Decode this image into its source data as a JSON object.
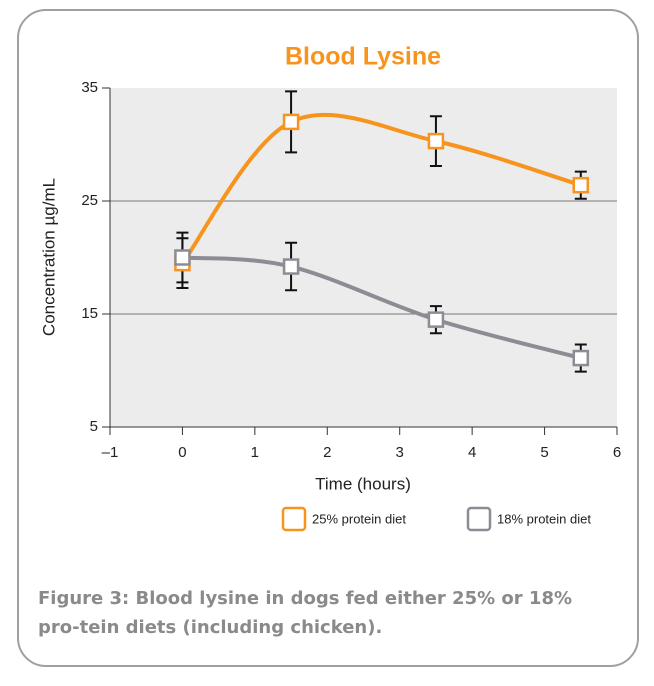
{
  "chart_data": {
    "type": "line",
    "title": "Blood Lysine",
    "xlabel": "Time (hours)",
    "ylabel": "Concentration µg/mL",
    "xlim": [
      -1,
      6
    ],
    "xticks": [
      {
        "value": -1,
        "label": "–1"
      },
      0,
      1,
      2,
      3,
      4,
      5,
      6
    ],
    "ylim": [
      5,
      35
    ],
    "yticks": [
      5,
      15,
      25,
      35
    ],
    "grid": true,
    "legend": "bottom",
    "series": [
      {
        "name": "25% protein diet",
        "color": "#f7941d",
        "x": [
          0,
          1.5,
          3.5,
          5.5
        ],
        "values": [
          19.5,
          32,
          30.3,
          26.4
        ],
        "errors": [
          2.2,
          2.7,
          2.2,
          1.2
        ]
      },
      {
        "name": "18% protein diet",
        "color": "#8c8c94",
        "x": [
          0,
          1.5,
          3.5,
          5.5
        ],
        "values": [
          20,
          19.2,
          14.5,
          11.1
        ],
        "errors": [
          2.2,
          2.1,
          1.2,
          1.2
        ]
      }
    ],
    "caption": "Figure 3: Blood lysine in dogs fed either 25% or 18% pro-tein diets (including chicken)."
  }
}
